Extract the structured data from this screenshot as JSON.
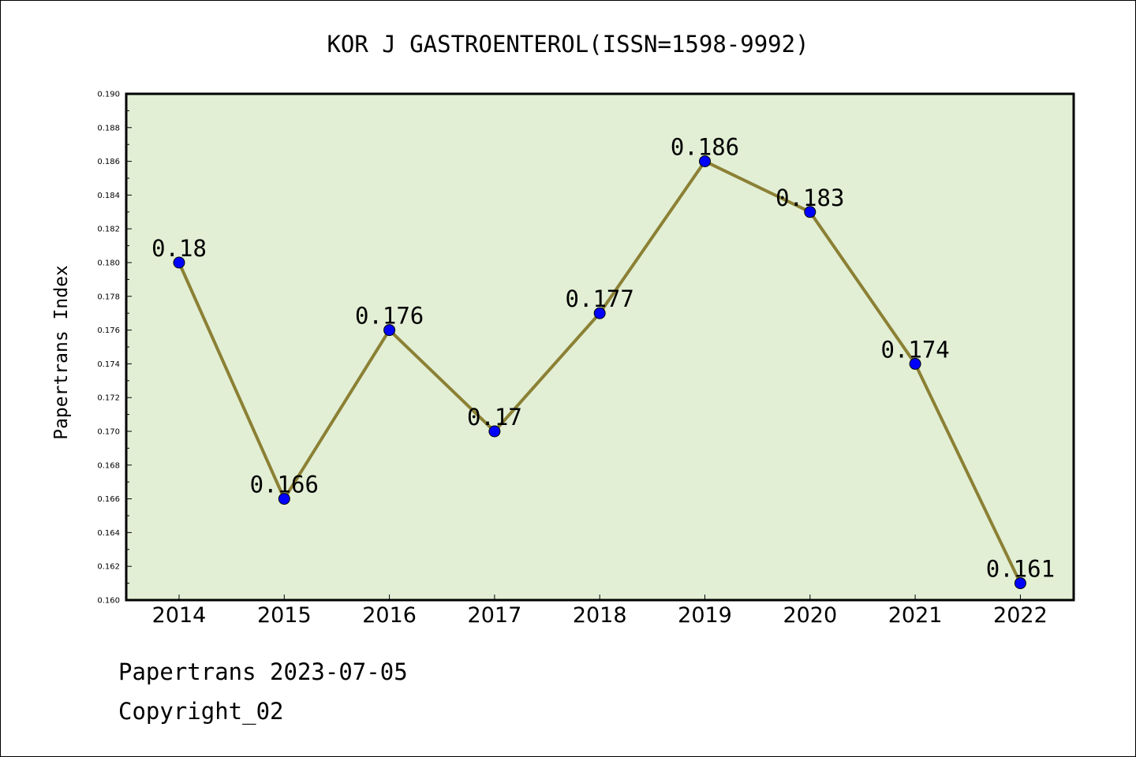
{
  "chart_data": {
    "type": "line",
    "title": "KOR J GASTROENTEROL(ISSN=1598-9992)",
    "xlabel": "",
    "ylabel": "Papertrans Index",
    "categories": [
      "2014",
      "2015",
      "2016",
      "2017",
      "2018",
      "2019",
      "2020",
      "2021",
      "2022"
    ],
    "series": [
      {
        "values": [
          0.18,
          0.166,
          0.176,
          0.17,
          0.177,
          0.186,
          0.183,
          0.174,
          0.161
        ]
      }
    ],
    "data_labels": [
      "0.18",
      "0.166",
      "0.176",
      "0.17",
      "0.177",
      "0.186",
      "0.183",
      "0.174",
      "0.161"
    ],
    "ylim": [
      0.16,
      0.19
    ],
    "y_tick_labels": [
      "0.160",
      "0.162",
      "0.164",
      "0.166",
      "0.168",
      "0.170",
      "0.172",
      "0.174",
      "0.176",
      "0.178",
      "0.180",
      "0.182",
      "0.184",
      "0.186",
      "0.188",
      "0.190"
    ],
    "grid": false,
    "colors": {
      "plot_background": "#e2efd5",
      "line": "#8b8034",
      "marker": "#0000ff"
    }
  },
  "footer": {
    "line1": "Papertrans 2023-07-05",
    "line2": "Copyright_02"
  }
}
